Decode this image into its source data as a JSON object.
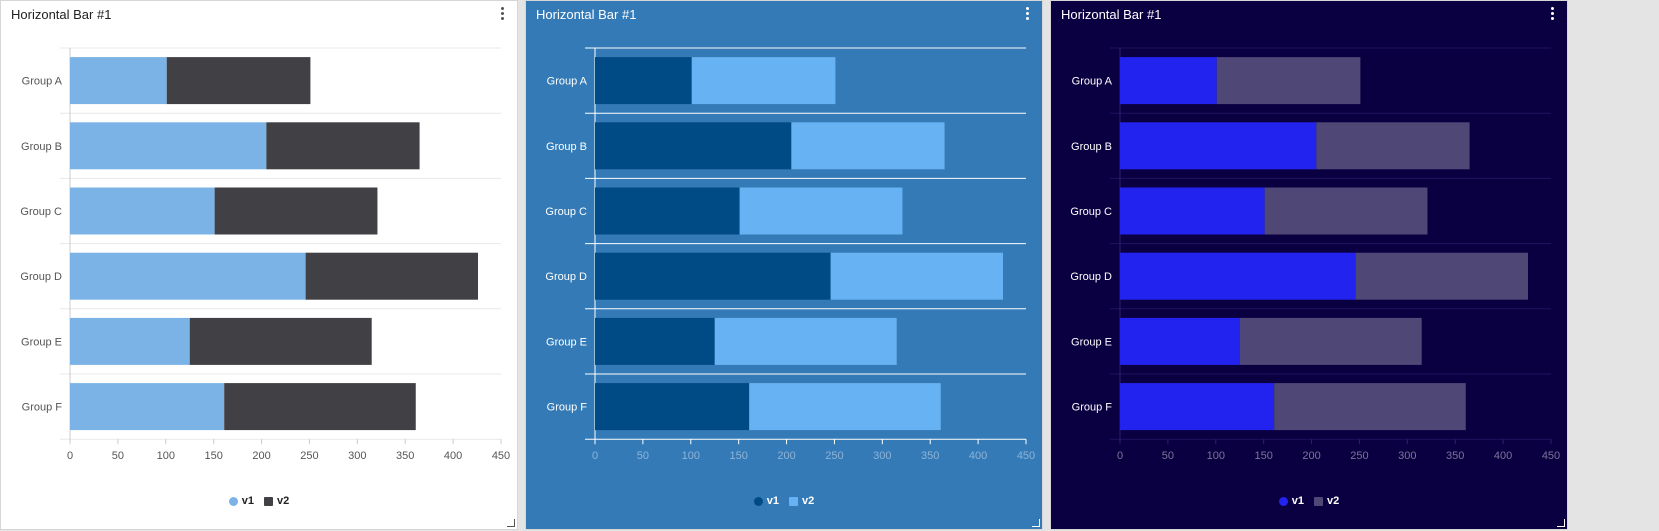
{
  "panels": [
    {
      "id": "light",
      "title": "Horizontal Bar #1",
      "theme": {
        "background": "#ffffff",
        "title_color": "#222222",
        "label_color": "#555555",
        "tick_color": "#555555",
        "grid_color": "#e8e8e8",
        "axis_color": "#cccccc",
        "legend_text": "#222222",
        "icon_color": "#555555"
      },
      "chart_data": {
        "type": "bar",
        "orientation": "horizontal",
        "stacked": true,
        "categories": [
          "Group A",
          "Group B",
          "Group C",
          "Group D",
          "Group E",
          "Group F"
        ],
        "series": [
          {
            "name": "v1",
            "color": "#7cb3e6",
            "values": [
              101,
              205,
              151,
              246,
              125,
              161
            ]
          },
          {
            "name": "v2",
            "color": "#404045",
            "values": [
              150,
              160,
              170,
              180,
              190,
              200
            ]
          }
        ],
        "xlim": [
          0,
          450
        ],
        "xticks": [
          0,
          50,
          100,
          150,
          200,
          250,
          300,
          350,
          400,
          450
        ],
        "legend_position": "bottom"
      }
    },
    {
      "id": "blue",
      "title": "Horizontal Bar #1",
      "theme": {
        "background": "#337ab7",
        "title_color": "#ffffff",
        "label_color": "#ffffff",
        "tick_color": "#8fb3d6",
        "grid_color": "#ffffff",
        "axis_color": "#ffffff",
        "legend_text": "#ffffff",
        "icon_color": "#ffffff"
      },
      "chart_data": {
        "type": "bar",
        "orientation": "horizontal",
        "stacked": true,
        "categories": [
          "Group A",
          "Group B",
          "Group C",
          "Group D",
          "Group E",
          "Group F"
        ],
        "series": [
          {
            "name": "v1",
            "color": "#004a86",
            "values": [
              101,
              205,
              151,
              246,
              125,
              161
            ]
          },
          {
            "name": "v2",
            "color": "#67b2f2",
            "values": [
              150,
              160,
              170,
              180,
              190,
              200
            ]
          }
        ],
        "xlim": [
          0,
          450
        ],
        "xticks": [
          0,
          50,
          100,
          150,
          200,
          250,
          300,
          350,
          400,
          450
        ],
        "legend_position": "bottom"
      }
    },
    {
      "id": "dark",
      "title": "Horizontal Bar #1",
      "theme": {
        "background": "#0a0041",
        "title_color": "#ffffff",
        "label_color": "#ffffff",
        "tick_color": "#777799",
        "grid_color": "#1c1460",
        "axis_color": "#2a2270",
        "legend_text": "#ffffff",
        "icon_color": "#ffffff"
      },
      "chart_data": {
        "type": "bar",
        "orientation": "horizontal",
        "stacked": true,
        "categories": [
          "Group A",
          "Group B",
          "Group C",
          "Group D",
          "Group E",
          "Group F"
        ],
        "series": [
          {
            "name": "v1",
            "color": "#2323f0",
            "values": [
              101,
              205,
              151,
              246,
              125,
              161
            ]
          },
          {
            "name": "v2",
            "color": "#4f4775",
            "values": [
              150,
              160,
              170,
              180,
              190,
              200
            ]
          }
        ],
        "xlim": [
          0,
          450
        ],
        "xticks": [
          0,
          50,
          100,
          150,
          200,
          250,
          300,
          350,
          400,
          450
        ],
        "legend_position": "bottom"
      }
    }
  ]
}
